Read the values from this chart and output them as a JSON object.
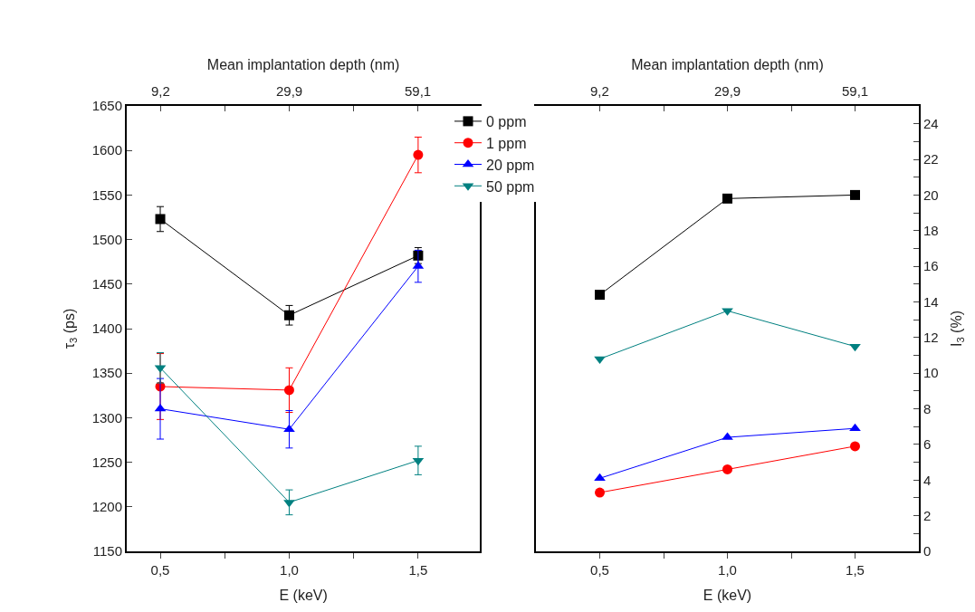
{
  "chart_data": [
    {
      "type": "line",
      "xlabel": "E (keV)",
      "ylabel": "τ$_{3}$ (ps)",
      "x2label": "Mean implantation depth (nm)",
      "x": [
        0.5,
        1.0,
        1.5
      ],
      "xlim": [
        0.37,
        1.74
      ],
      "xticks": [
        {
          "value": 0.5,
          "label": "0,5"
        },
        {
          "value": 0.75,
          "label": null
        },
        {
          "value": 1.0,
          "label": "1,0"
        },
        {
          "value": 1.25,
          "label": null
        },
        {
          "value": 1.5,
          "label": "1,5"
        }
      ],
      "annotations": [
        {
          "text": "9,2",
          "x": 0.5
        },
        {
          "text": "29,9",
          "x": 1.0
        },
        {
          "text": "59,1",
          "x": 1.5
        }
      ],
      "ylim": [
        1150,
        1650
      ],
      "yticks": [
        1150,
        1200,
        1250,
        1300,
        1350,
        1400,
        1450,
        1500,
        1550,
        1600,
        1650
      ],
      "legend": "top right",
      "line_style": "solid",
      "series": [
        {
          "name": "0 ppm",
          "color": "#000000",
          "marker": "square",
          "values": [
            1523,
            1415,
            1482
          ],
          "errors": [
            14,
            11,
            9
          ]
        },
        {
          "name": "1 ppm",
          "color": "#ff0000",
          "marker": "circle",
          "values": [
            1335,
            1331,
            1595
          ],
          "errors": [
            37,
            25,
            20
          ]
        },
        {
          "name": "20 ppm",
          "color": "#0000ff",
          "marker": "triangle",
          "values": [
            1310,
            1287,
            1470
          ],
          "errors": [
            34,
            21,
            18
          ]
        },
        {
          "name": "50 ppm",
          "color": "#008080",
          "marker": "triangle-down",
          "values": [
            1356,
            1205,
            1252
          ],
          "errors": [
            17,
            14,
            16
          ]
        }
      ]
    },
    {
      "type": "line",
      "xlabel": "E (keV)",
      "y2label": "I$_{3}$ (%)",
      "x2label": "Mean implantation depth (nm)",
      "x": [
        0.5,
        1.0,
        1.5
      ],
      "xlim": [
        0.25,
        1.75
      ],
      "xticks": [
        {
          "value": 0.5,
          "label": "0,5"
        },
        {
          "value": 0.75,
          "label": null
        },
        {
          "value": 1.0,
          "label": "1,0"
        },
        {
          "value": 1.25,
          "label": null
        },
        {
          "value": 1.5,
          "label": "1,5"
        }
      ],
      "annotations": [
        {
          "text": "9,2",
          "x": 0.5
        },
        {
          "text": "29,9",
          "x": 1.0
        },
        {
          "text": "59,1",
          "x": 1.5
        }
      ],
      "y2lim": [
        0,
        25
      ],
      "y2ticks": [
        0,
        {
          "value": 1,
          "label": null
        },
        2,
        {
          "value": 3,
          "label": null
        },
        4,
        {
          "value": 5,
          "label": null
        },
        6,
        {
          "value": 7,
          "label": null
        },
        8,
        {
          "value": 9,
          "label": null
        },
        10,
        {
          "value": 11,
          "label": null
        },
        12,
        {
          "value": 13,
          "label": null
        },
        14,
        {
          "value": 15,
          "label": null
        },
        16,
        {
          "value": 17,
          "label": null
        },
        18,
        {
          "value": 19,
          "label": null
        },
        20,
        {
          "value": 21,
          "label": null
        },
        22,
        {
          "value": 23,
          "label": null
        },
        24
      ],
      "line_style": "solid",
      "series": [
        {
          "color": "#000000",
          "marker": "square",
          "axis": "y2",
          "values": [
            14.4,
            19.8,
            20.0
          ]
        },
        {
          "color": "#ff0000",
          "marker": "circle",
          "axis": "y2",
          "values": [
            3.3,
            4.6,
            5.9
          ]
        },
        {
          "color": "#0000ff",
          "marker": "triangle",
          "axis": "y2",
          "values": [
            4.1,
            6.4,
            6.9
          ]
        },
        {
          "color": "#008080",
          "marker": "triangle-down",
          "axis": "y2",
          "values": [
            10.8,
            13.5,
            11.5
          ]
        }
      ]
    }
  ]
}
